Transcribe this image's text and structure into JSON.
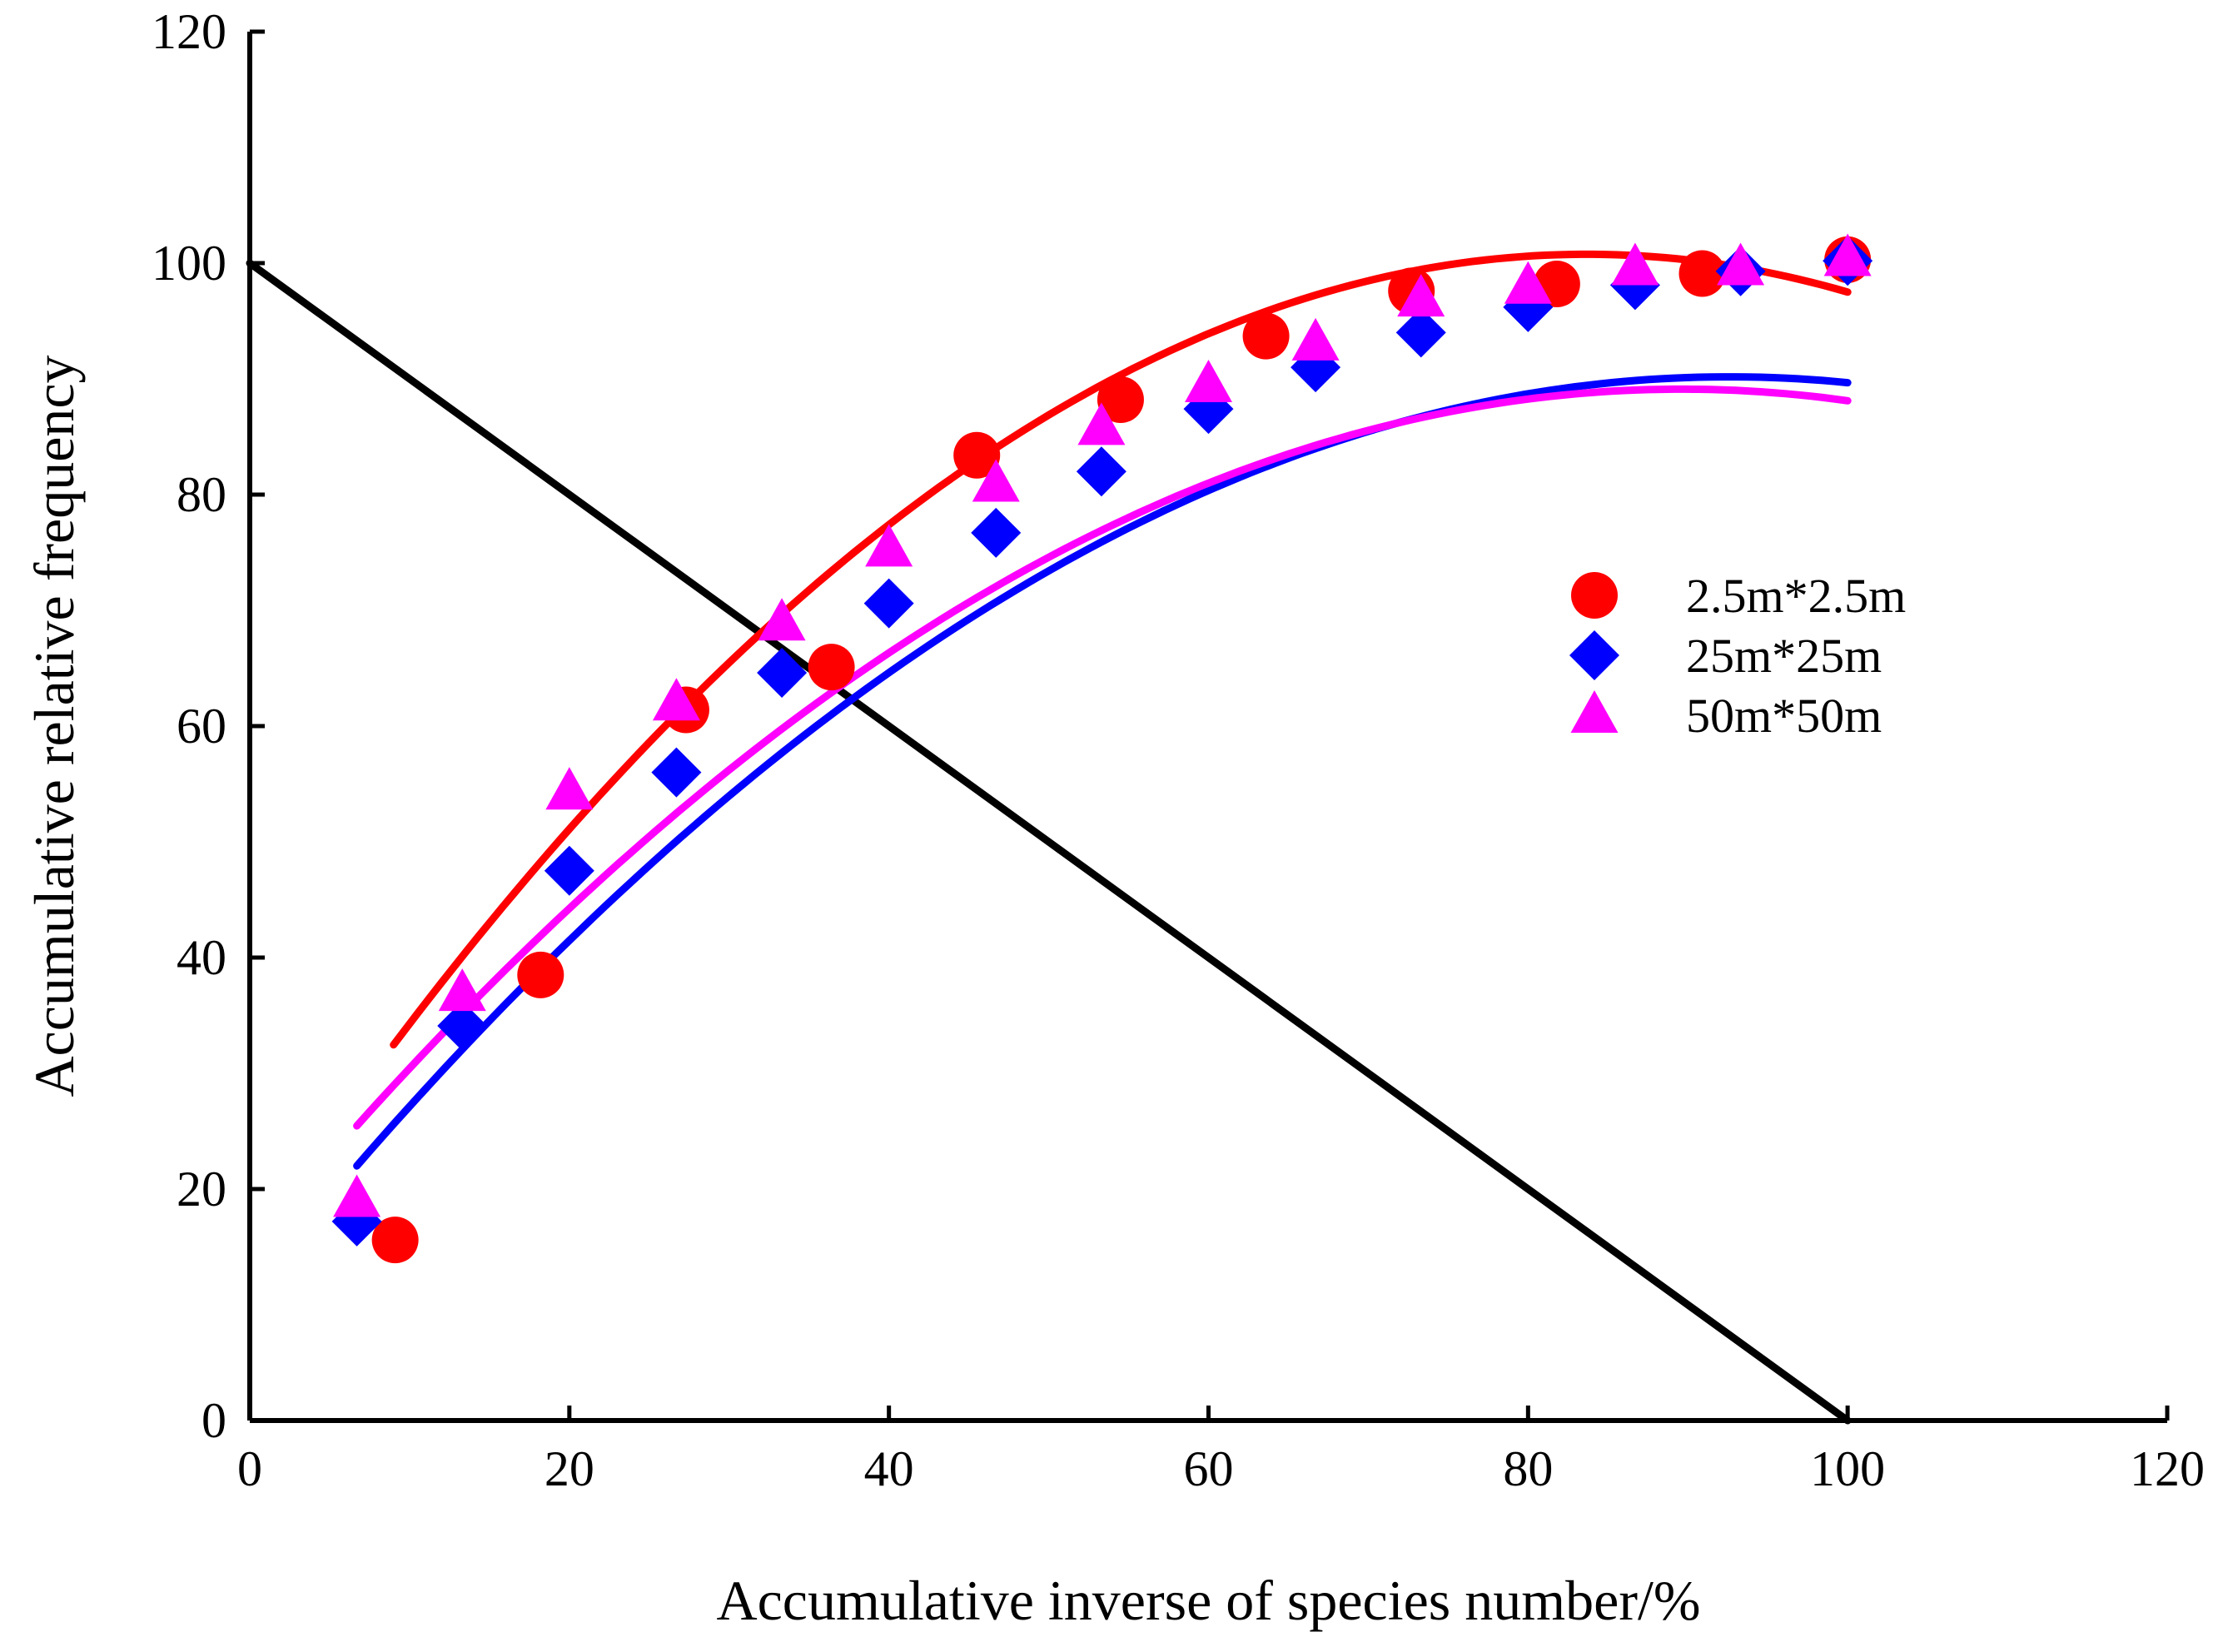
{
  "chart_data": {
    "type": "scatter",
    "title": "",
    "xlabel": "Accumulative inverse of species number/%",
    "ylabel": "Accumulative relative frequency",
    "xlim": [
      0,
      120
    ],
    "ylim": [
      0,
      120
    ],
    "xticks": [
      0,
      20,
      40,
      60,
      80,
      100,
      120
    ],
    "yticks": [
      0,
      20,
      40,
      60,
      80,
      100,
      120
    ],
    "grid": false,
    "legend_position": "right",
    "series": [
      {
        "name": "2.5m*2.5m",
        "marker": "circle",
        "color": "#ff0000",
        "points": [
          {
            "x": 9.1,
            "y": 15.6
          },
          {
            "x": 18.2,
            "y": 38.5
          },
          {
            "x": 27.3,
            "y": 61.4
          },
          {
            "x": 36.4,
            "y": 65.1
          },
          {
            "x": 45.5,
            "y": 83.4
          },
          {
            "x": 54.5,
            "y": 88.2
          },
          {
            "x": 63.6,
            "y": 93.7
          },
          {
            "x": 72.7,
            "y": 97.6
          },
          {
            "x": 81.8,
            "y": 98.2
          },
          {
            "x": 90.9,
            "y": 99.1
          },
          {
            "x": 100,
            "y": 100.3
          }
        ],
        "fit": {
          "kind": "quadratic",
          "x_range": [
            9,
            100
          ],
          "coefficients": [
            -0.01225,
            2.05,
            15.0
          ]
        }
      },
      {
        "name": "25m*25m",
        "marker": "diamond",
        "color": "#0000ff",
        "points": [
          {
            "x": 6.7,
            "y": 17.2
          },
          {
            "x": 13.3,
            "y": 34.1
          },
          {
            "x": 20.0,
            "y": 47.5
          },
          {
            "x": 26.7,
            "y": 56.0
          },
          {
            "x": 33.3,
            "y": 64.6
          },
          {
            "x": 40.0,
            "y": 70.6
          },
          {
            "x": 46.7,
            "y": 76.7
          },
          {
            "x": 53.3,
            "y": 82.0
          },
          {
            "x": 60.0,
            "y": 87.4
          },
          {
            "x": 66.7,
            "y": 91.0
          },
          {
            "x": 73.3,
            "y": 94.0
          },
          {
            "x": 80.0,
            "y": 96.2
          },
          {
            "x": 86.7,
            "y": 98.1
          },
          {
            "x": 93.3,
            "y": 99.3
          },
          {
            "x": 100,
            "y": 100.2
          }
        ],
        "fit": {
          "kind": "quadratic",
          "x_range": [
            6.7,
            100
          ],
          "coefficients": [
            -0.00924,
            1.7112,
            10.95
          ]
        }
      },
      {
        "name": "50m*50m",
        "marker": "triangle",
        "color": "#ff00ff",
        "points": [
          {
            "x": 6.7,
            "y": 19.1
          },
          {
            "x": 13.3,
            "y": 36.9
          },
          {
            "x": 20.0,
            "y": 54.3
          },
          {
            "x": 26.7,
            "y": 62.0
          },
          {
            "x": 33.3,
            "y": 68.9
          },
          {
            "x": 40.0,
            "y": 75.3
          },
          {
            "x": 46.7,
            "y": 80.9
          },
          {
            "x": 53.3,
            "y": 85.8
          },
          {
            "x": 60.0,
            "y": 89.5
          },
          {
            "x": 66.7,
            "y": 93.1
          },
          {
            "x": 73.3,
            "y": 96.9
          },
          {
            "x": 80.0,
            "y": 98.0
          },
          {
            "x": 86.7,
            "y": 99.6
          },
          {
            "x": 93.3,
            "y": 99.6
          },
          {
            "x": 100,
            "y": 100.4
          }
        ],
        "fit": {
          "kind": "quadratic",
          "x_range": [
            6.7,
            100
          ],
          "coefficients": [
            -0.00926,
            1.6595,
            14.76
          ]
        }
      }
    ],
    "reference_line": {
      "name": "y = 100 - x",
      "color": "#000000",
      "points": [
        {
          "x": 0,
          "y": 100
        },
        {
          "x": 100,
          "y": 0
        }
      ]
    }
  }
}
